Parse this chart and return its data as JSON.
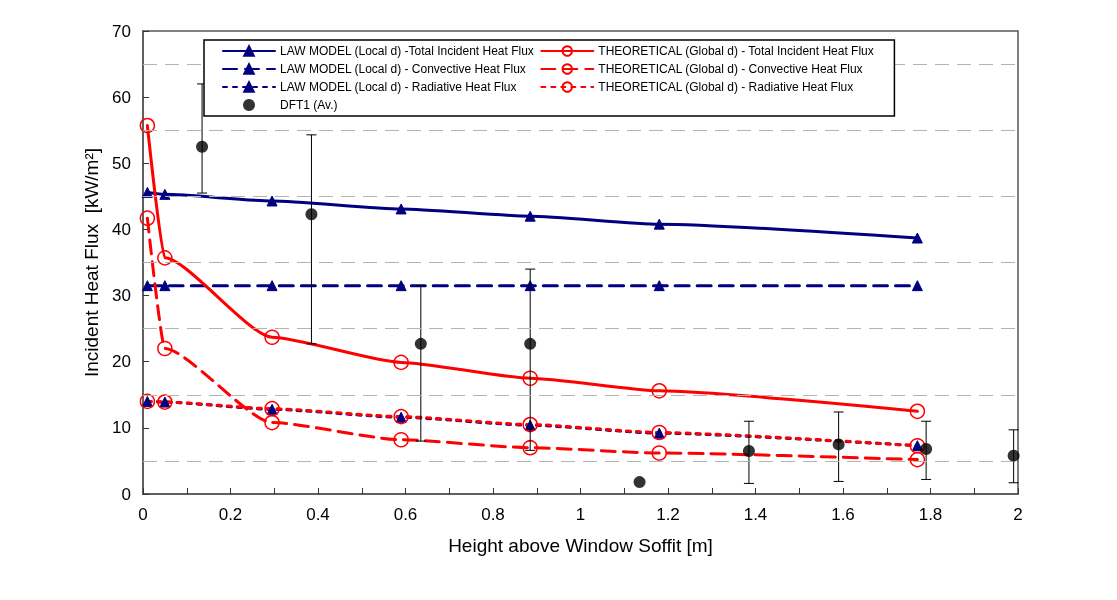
{
  "chart_data": {
    "type": "line",
    "xlabel": "Height above Window Soffit [m]",
    "ylabel": "Incident Heat Flux  [kW/m²]",
    "xlim": [
      0,
      2
    ],
    "xticks": [
      0,
      {
        "value": 0.1,
        "label": null
      },
      0.2,
      {
        "value": 0.3,
        "label": null
      },
      0.4,
      {
        "value": 0.5,
        "label": null
      },
      0.6,
      {
        "value": 0.7,
        "label": null
      },
      0.8,
      {
        "value": 0.9,
        "label": null
      },
      1,
      {
        "value": 1.1,
        "label": null
      },
      1.2,
      {
        "value": 1.3,
        "label": null
      },
      1.4,
      {
        "value": 1.5,
        "label": null
      },
      1.6,
      {
        "value": 1.7,
        "label": null
      },
      1.8,
      {
        "value": 1.9,
        "label": null
      },
      2
    ],
    "ylim": [
      0,
      70
    ],
    "yticks": [
      0,
      {
        "value": 5,
        "label": null
      },
      10,
      {
        "value": 15,
        "label": null
      },
      20,
      {
        "value": 25,
        "label": null
      },
      30,
      {
        "value": 35,
        "label": null
      },
      40,
      {
        "value": 45,
        "label": null
      },
      50,
      {
        "value": 55,
        "label": null
      },
      60,
      {
        "value": 65,
        "label": null
      },
      70
    ],
    "legend": "top",
    "ref_lines": [
      {
        "axis": "y",
        "value": 5,
        "label": null,
        "color": "#b4b4b4",
        "line_style": "dashed"
      },
      {
        "axis": "y",
        "value": 15,
        "label": null,
        "color": "#b4b4b4",
        "line_style": "dashed"
      },
      {
        "axis": "y",
        "value": 25,
        "label": null,
        "color": "#b4b4b4",
        "line_style": "dashed"
      },
      {
        "axis": "y",
        "value": 35,
        "label": null,
        "color": "#b4b4b4",
        "line_style": "dashed"
      },
      {
        "axis": "y",
        "value": 45,
        "label": null,
        "color": "#b4b4b4",
        "line_style": "dashed"
      },
      {
        "axis": "y",
        "value": 55,
        "label": null,
        "color": "#b4b4b4",
        "line_style": "dashed"
      },
      {
        "axis": "y",
        "value": 65,
        "label": null,
        "color": "#b4b4b4",
        "line_style": "dashed"
      }
    ],
    "series": [
      {
        "name": "LAW MODEL (Local d) -Total Incident Heat Flux",
        "color": "#000080",
        "marker": "triangle",
        "line_style": "solid",
        "x": [
          0.01,
          0.05,
          0.295,
          0.59,
          0.885,
          1.18,
          1.77
        ],
        "values": [
          45.6,
          45.3,
          44.3,
          43.1,
          42.0,
          40.8,
          38.7
        ]
      },
      {
        "name": "LAW MODEL (Local d) - Convective Heat Flux",
        "color": "#000080",
        "marker": "triangle",
        "line_style": "dashed",
        "x": [
          0.01,
          0.05,
          0.295,
          0.59,
          0.885,
          1.18,
          1.77
        ],
        "values": [
          31.5,
          31.5,
          31.5,
          31.5,
          31.5,
          31.5,
          31.5
        ]
      },
      {
        "name": "LAW MODEL (Local d) - Radiative Heat Flux",
        "color": "#000080",
        "marker": "triangle",
        "line_style": "dotted",
        "x": [
          0.01,
          0.05,
          0.295,
          0.59,
          0.885,
          1.18,
          1.77
        ],
        "values": [
          14.0,
          13.9,
          12.8,
          11.6,
          10.4,
          9.2,
          7.3
        ]
      },
      {
        "name": "DFT1 (Av.)",
        "type": "scatter",
        "color": "#000000",
        "marker": "circle",
        "x": [
          0.135,
          0.385,
          0.635,
          0.885,
          1.135,
          1.385,
          1.59,
          1.79,
          1.99
        ],
        "values": [
          52.5,
          42.3,
          22.7,
          22.7,
          1.8,
          6.5,
          7.5,
          6.8,
          5.8
        ],
        "errors": [
          [
            45.5,
            62
          ],
          [
            22.7,
            54.3
          ],
          [
            8,
            31.5
          ],
          [
            6.6,
            34
          ],
          null,
          [
            1.6,
            11
          ],
          [
            1.9,
            12.4
          ],
          [
            2.2,
            11
          ],
          [
            1.7,
            9.7
          ]
        ]
      },
      {
        "name": "THEORETICAL (Global d) - Total Incident Heat Flux",
        "color": "#ff0000",
        "marker": "circle",
        "line_style": "solid",
        "x": [
          0.01,
          0.05,
          0.295,
          0.59,
          0.885,
          1.18,
          1.77
        ],
        "values": [
          55.7,
          35.7,
          23.7,
          19.9,
          17.5,
          15.6,
          12.5
        ]
      },
      {
        "name": "THEORETICAL (Global d) - Convective Heat Flux",
        "color": "#ff0000",
        "marker": "circle",
        "line_style": "dashed",
        "x": [
          0.01,
          0.05,
          0.295,
          0.59,
          0.885,
          1.18,
          1.77
        ],
        "values": [
          41.7,
          22.0,
          10.8,
          8.2,
          7.0,
          6.2,
          5.2
        ]
      },
      {
        "name": "THEORETICAL (Global d) - Radiative Heat Flux",
        "color": "#ff0000",
        "marker": "circle",
        "line_style": "dotted",
        "x": [
          0.01,
          0.05,
          0.295,
          0.59,
          0.885,
          1.18,
          1.77
        ],
        "values": [
          14.0,
          13.9,
          12.9,
          11.7,
          10.5,
          9.3,
          7.3
        ]
      }
    ]
  }
}
